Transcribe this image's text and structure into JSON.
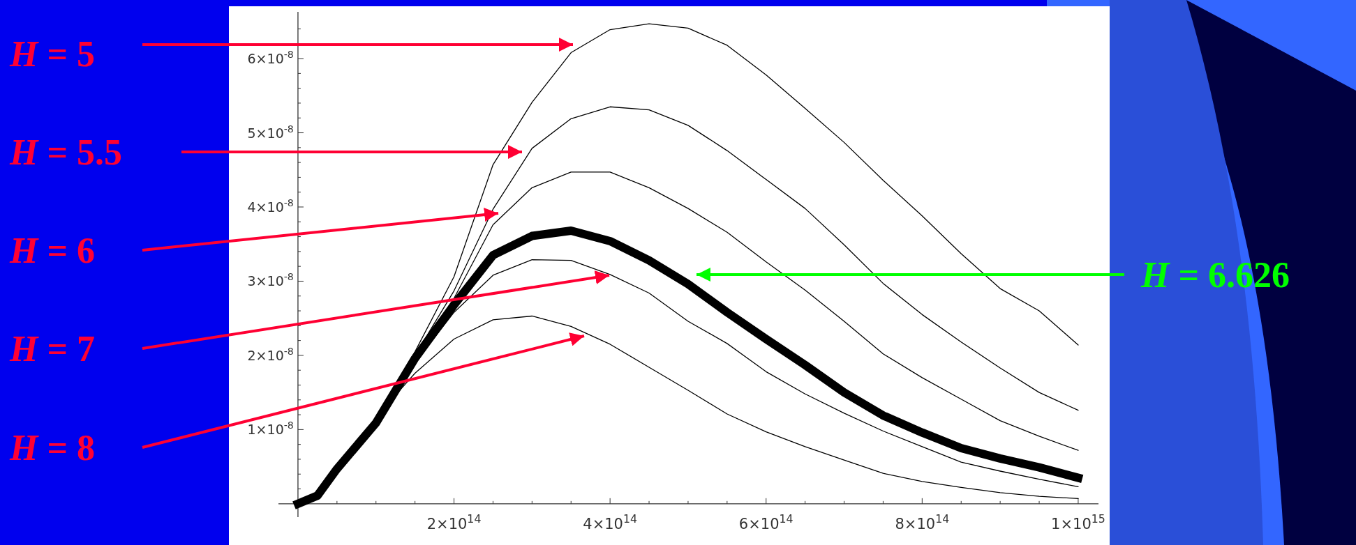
{
  "chart_data": {
    "type": "line",
    "x": [
      0,
      25000000000000.0,
      50000000000000.0,
      100000000000000.0,
      150000000000000.0,
      200000000000000.0,
      250000000000000.0,
      300000000000000.0,
      350000000000000.0,
      400000000000000.0,
      450000000000000.0,
      500000000000000.0,
      550000000000000.0,
      600000000000000.0,
      650000000000000.0,
      700000000000000.0,
      750000000000000.0,
      800000000000000.0,
      850000000000000.0,
      900000000000000.0,
      950000000000000.0,
      1000000000000000.0
    ],
    "series": [
      {
        "color": "#000000",
        "values": [
          0,
          1.1e-09,
          4.7e-09,
          1.15e-08,
          2.05e-08,
          3.06e-08,
          4.57e-08,
          5.41e-08,
          6.08e-08,
          6.39e-08,
          6.47e-08,
          6.41e-08,
          6.18e-08,
          5.78e-08,
          5.33e-08,
          4.87e-08,
          4.36e-08,
          3.88e-08,
          3.37e-08,
          2.9e-08,
          2.6e-08,
          2.14e-08
        ]
      },
      {
        "color": "#000000",
        "values": [
          0,
          1.1e-09,
          4.7e-09,
          1.13e-08,
          2e-08,
          2.87e-08,
          3.97e-08,
          4.79e-08,
          5.19e-08,
          5.35e-08,
          5.31e-08,
          5.1e-08,
          4.76e-08,
          4.37e-08,
          3.98e-08,
          3.49e-08,
          2.97e-08,
          2.55e-08,
          2.18e-08,
          1.83e-08,
          1.5e-08,
          1.26e-08
        ]
      },
      {
        "color": "#000000",
        "values": [
          0,
          1.1e-09,
          4.7e-09,
          1.12e-08,
          1.98e-08,
          2.77e-08,
          3.76e-08,
          4.26e-08,
          4.47e-08,
          4.47e-08,
          4.26e-08,
          3.98e-08,
          3.66e-08,
          3.26e-08,
          2.88e-08,
          2.46e-08,
          2.02e-08,
          1.7e-08,
          1.41e-08,
          1.12e-08,
          9.1e-09,
          7.2e-09
        ]
      },
      {
        "color": "#000000",
        "values": [
          0,
          1.1e-09,
          4.6e-09,
          1.09e-08,
          1.9e-08,
          2.58e-08,
          3.08e-08,
          3.29e-08,
          3.28e-08,
          3.09e-08,
          2.84e-08,
          2.46e-08,
          2.16e-08,
          1.78e-08,
          1.48e-08,
          1.22e-08,
          9.8e-09,
          7.7e-09,
          5.6e-09,
          4.4e-09,
          3.3e-09,
          2.3e-09
        ]
      },
      {
        "color": "#000000",
        "values": [
          0,
          1.1e-09,
          4.5e-09,
          1.17e-08,
          1.76e-08,
          2.22e-08,
          2.48e-08,
          2.53e-08,
          2.39e-08,
          2.15e-08,
          1.84e-08,
          1.53e-08,
          1.21e-08,
          9.7e-09,
          7.7e-09,
          5.9e-09,
          4.1e-09,
          3e-09,
          2.2e-09,
          1.5e-09,
          1e-09,
          7e-10
        ]
      },
      {
        "color": "#000000",
        "values": [
          0,
          1.1e-09,
          4.7e-09,
          1.09e-08,
          1.96e-08,
          2.68e-08,
          3.35e-08,
          3.61e-08,
          3.68e-08,
          3.54e-08,
          3.28e-08,
          2.96e-08,
          2.58e-08,
          2.22e-08,
          1.87e-08,
          1.5e-08,
          1.19e-08,
          9.6e-09,
          7.5e-09,
          6.1e-09,
          4.9e-09,
          3.5e-09
        ]
      }
    ],
    "xlim": [
      -25000000000000.0,
      1026000000000000.0
    ],
    "ylim": [
      -1.8e-09,
      6.63e-08
    ],
    "xticks": [
      {
        "value": 50000000000000.0,
        "label": null
      },
      {
        "value": 100000000000000.0,
        "label": null
      },
      {
        "value": 150000000000000.0,
        "label": null
      },
      {
        "value": 200000000000000.0,
        "label": "2×10$^{14}$"
      },
      {
        "value": 250000000000000.0,
        "label": null
      },
      {
        "value": 300000000000000.0,
        "label": null
      },
      {
        "value": 350000000000000.0,
        "label": null
      },
      {
        "value": 400000000000000.0,
        "label": "4×10$^{14}$"
      },
      {
        "value": 450000000000000.0,
        "label": null
      },
      {
        "value": 500000000000000.0,
        "label": null
      },
      {
        "value": 550000000000000.0,
        "label": null
      },
      {
        "value": 600000000000000.0,
        "label": "6×10$^{14}$"
      },
      {
        "value": 650000000000000.0,
        "label": null
      },
      {
        "value": 700000000000000.0,
        "label": null
      },
      {
        "value": 750000000000000.0,
        "label": null
      },
      {
        "value": 800000000000000.0,
        "label": "8×10$^{14}$"
      },
      {
        "value": 850000000000000.0,
        "label": null
      },
      {
        "value": 900000000000000.0,
        "label": null
      },
      {
        "value": 950000000000000.0,
        "label": null
      },
      {
        "value": 1000000000000000.0,
        "label": "1×10$^{15}$"
      }
    ],
    "yticks": [
      {
        "value": 2e-09,
        "label": null
      },
      {
        "value": 4e-09,
        "label": null
      },
      {
        "value": 6e-09,
        "label": null
      },
      {
        "value": 8e-09,
        "label": null
      },
      {
        "value": 1e-08,
        "label": "1×10$^{-8}$"
      },
      {
        "value": 1.2e-08,
        "label": null
      },
      {
        "value": 1.4e-08,
        "label": null
      },
      {
        "value": 1.6e-08,
        "label": null
      },
      {
        "value": 1.8e-08,
        "label": null
      },
      {
        "value": 2e-08,
        "label": "2×10$^{-8}$"
      },
      {
        "value": 2.2e-08,
        "label": null
      },
      {
        "value": 2.4e-08,
        "label": null
      },
      {
        "value": 2.6e-08,
        "label": null
      },
      {
        "value": 2.8e-08,
        "label": null
      },
      {
        "value": 3e-08,
        "label": "3×10$^{-8}$"
      },
      {
        "value": 3.2e-08,
        "label": null
      },
      {
        "value": 3.4e-08,
        "label": null
      },
      {
        "value": 3.6e-08,
        "label": null
      },
      {
        "value": 3.8e-08,
        "label": null
      },
      {
        "value": 4e-08,
        "label": "4×10$^{-8}$"
      },
      {
        "value": 4.2e-08,
        "label": null
      },
      {
        "value": 4.4e-08,
        "label": null
      },
      {
        "value": 4.6e-08,
        "label": null
      },
      {
        "value": 4.8e-08,
        "label": null
      },
      {
        "value": 5e-08,
        "label": "5×10$^{-8}$"
      },
      {
        "value": 5.2e-08,
        "label": null
      },
      {
        "value": 5.4e-08,
        "label": null
      },
      {
        "value": 5.6e-08,
        "label": null
      },
      {
        "value": 5.8e-08,
        "label": null
      },
      {
        "value": 6e-08,
        "label": "6×10$^{-8}$"
      },
      {
        "value": 6.2e-08,
        "label": null
      },
      {
        "value": 6.4e-08,
        "label": null
      }
    ],
    "grid": false,
    "marker": "none",
    "line_style": "solid",
    "annotations": [
      "H = 5",
      "H = 5.5",
      "H = 6",
      "H = 7",
      "H = 8",
      "H = 6.626"
    ]
  }
}
